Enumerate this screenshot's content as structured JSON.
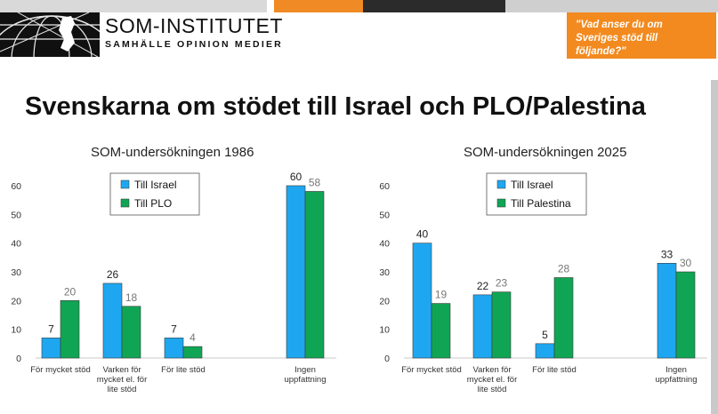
{
  "header": {
    "logo_name": "SOM-INSTITUTET",
    "logo_tagline": "SAMHÄLLE OPINION MEDIER",
    "question": "\"Vad anser du om Sveriges stöd till följande?\""
  },
  "title": "Svenskarna om stödet till Israel och PLO/Palestina",
  "colors": {
    "blue": "#1ea7f0",
    "green": "#10a554",
    "orange": "#f28a1f",
    "axis": "#c8c8c8",
    "label_blue": "#222222",
    "label_green": "#777777"
  },
  "chart_data": [
    {
      "type": "bar",
      "title": "SOM-undersökningen 1986",
      "categories": [
        [
          "För mycket stöd"
        ],
        [
          "Varken för",
          "mycket el. för",
          "lite stöd"
        ],
        [
          "För lite stöd"
        ],
        [
          "Ingen",
          "uppfattning"
        ]
      ],
      "series": [
        {
          "name": "Till Israel",
          "color": "#1ea7f0",
          "values": [
            7,
            26,
            7,
            60
          ]
        },
        {
          "name": "Till PLO",
          "color": "#10a554",
          "values": [
            20,
            18,
            4,
            58
          ]
        }
      ],
      "ylim": [
        0,
        60
      ],
      "yticks": [
        "0",
        "10",
        "20",
        "30",
        "40",
        "50",
        "60"
      ],
      "legend": "top-left"
    },
    {
      "type": "bar",
      "title": "SOM-undersökningen 2025",
      "categories": [
        [
          "För mycket stöd"
        ],
        [
          "Varken för",
          "mycket el. för",
          "lite stöd"
        ],
        [
          "För lite stöd"
        ],
        [
          "Ingen",
          "uppfattning"
        ]
      ],
      "series": [
        {
          "name": "Till Israel",
          "color": "#1ea7f0",
          "values": [
            40,
            22,
            5,
            33
          ]
        },
        {
          "name": "Till Palestina",
          "color": "#10a554",
          "values": [
            19,
            23,
            28,
            30
          ]
        }
      ],
      "ylim": [
        0,
        60
      ],
      "yticks": [
        "0",
        "10",
        "20",
        "30",
        "40",
        "50",
        "60"
      ],
      "legend": "top-left"
    }
  ]
}
